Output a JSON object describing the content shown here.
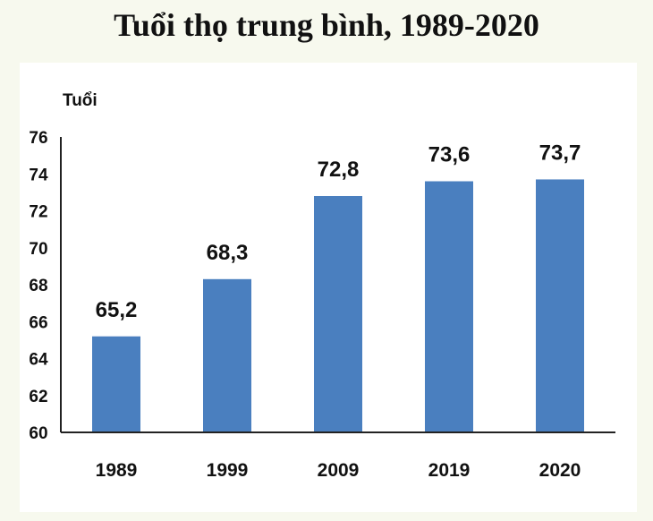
{
  "chart_data": {
    "type": "bar",
    "title": "Tuổi thọ trung bình, 1989-2020",
    "ylabel": "Tuổi",
    "xlabel": "",
    "categories": [
      "1989",
      "1999",
      "2009",
      "2019",
      "2020"
    ],
    "values": [
      65.2,
      68.3,
      72.8,
      73.6,
      73.7
    ],
    "data_labels": [
      "65,2",
      "68,3",
      "72,8",
      "73,6",
      "73,7"
    ],
    "ylim": [
      60,
      76
    ],
    "yticks": [
      60,
      62,
      64,
      66,
      68,
      70,
      72,
      74,
      76
    ],
    "grid": false,
    "legend": "none",
    "bar_color": "#4a7fbf"
  }
}
